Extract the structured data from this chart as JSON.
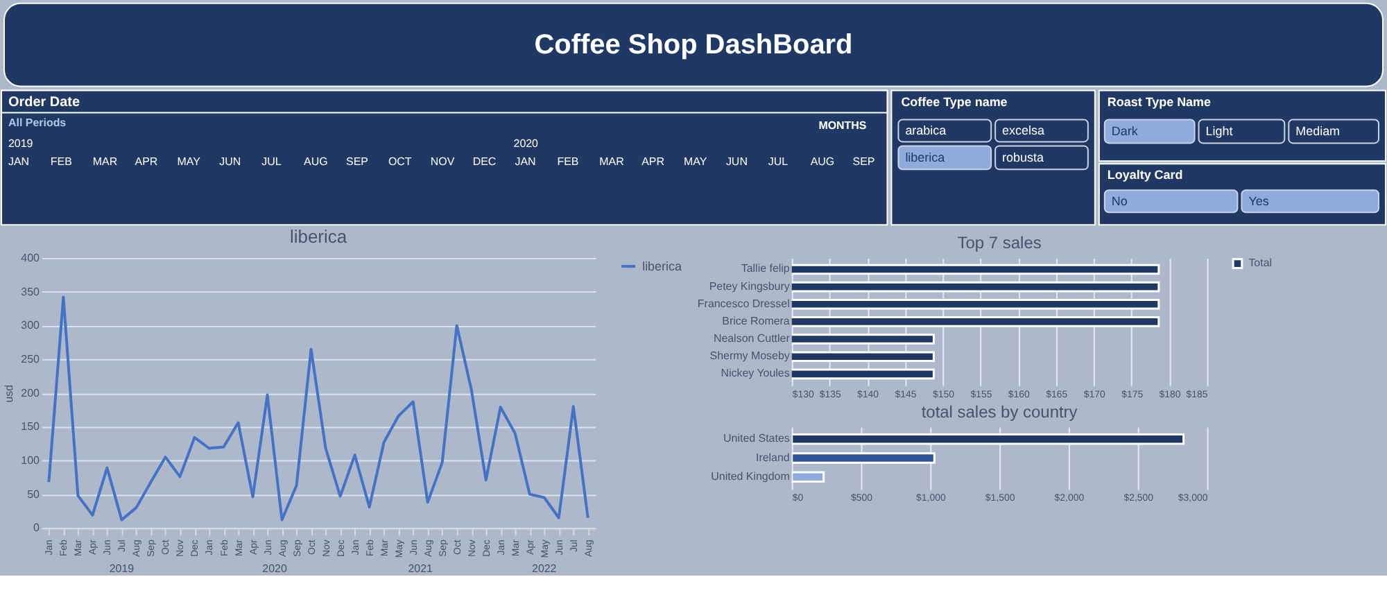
{
  "chart_data": [
    {
      "type": "other",
      "title": "Coffee Shop DashBoard",
      "annotations": [
        "Order Date",
        "All Periods",
        "MONTHS",
        "2019",
        "2020",
        "JAN",
        "FEB",
        "MAR",
        "APR",
        "MAY",
        "JUN",
        "JUL",
        "AUG",
        "SEP",
        "OCT",
        "NOV",
        "DEC",
        "JAN",
        "FEB",
        "MAR",
        "APR",
        "MAY",
        "JUN",
        "JUL",
        "AUG",
        "SEP",
        "Coffee Type name",
        "arabica",
        "excelsa",
        "liberica",
        "robusta",
        "Roast Type Name",
        "Dark",
        "Light",
        "Mediam",
        "Loyalty Card",
        "No",
        "Yes"
      ]
    },
    {
      "type": "line",
      "title": "liberica",
      "ylabel": "usd",
      "categories": [
        "Jan",
        "Feb",
        "Mar",
        "Apr",
        "Jun",
        "Jul",
        "Aug",
        "Sep",
        "Oct",
        "Nov",
        "Dec",
        "Jan",
        "Feb",
        "Mar",
        "Apr",
        "Jun",
        "Aug",
        "Sep",
        "Oct",
        "Nov",
        "Dec",
        "Jan",
        "Feb",
        "Mar",
        "May",
        "Jun",
        "Aug",
        "Sep",
        "Oct",
        "Nov",
        "Dec",
        "Jan",
        "Mar",
        "Apr",
        "May",
        "Jun",
        "Jul",
        "Aug"
      ],
      "series": [
        {
          "name": "liberica",
          "color": "#4472c4",
          "values": [
            68,
            342,
            48,
            19,
            89,
            12,
            30,
            68,
            105,
            76,
            134,
            118,
            120,
            156,
            46,
            197,
            12,
            63,
            265,
            118,
            47,
            108,
            31,
            127,
            166,
            187,
            38,
            97,
            300,
            205,
            71,
            179,
            140,
            50,
            45,
            15,
            180,
            15
          ]
        }
      ],
      "ylim": [
        0,
        400
      ],
      "yticks": [
        0,
        50,
        100,
        150,
        200,
        250,
        300,
        350,
        400
      ],
      "grid": "y",
      "legend": "right",
      "annotations": [
        "2019",
        "2020",
        "2021",
        "2022"
      ]
    },
    {
      "type": "bar",
      "orientation": "horizontal",
      "title": "Top 7 sales",
      "categories": [
        "Tallie felip",
        "Petey Kingsbury",
        "Francesco Dressel",
        "Brice Romera",
        "Nealson Cuttler",
        "Shermy Moseby",
        "Nickey Youles"
      ],
      "series": [
        {
          "name": "Total",
          "color": "#1f3864",
          "values": [
            178.6,
            178.6,
            178.6,
            178.6,
            148.8,
            148.8,
            148.8
          ]
        }
      ],
      "xlim": [
        130,
        185
      ],
      "xticks": [
        {
          "value": 130,
          "label": "$130"
        },
        {
          "value": 135,
          "label": "$135"
        },
        {
          "value": 140,
          "label": "$140"
        },
        {
          "value": 145,
          "label": "$145"
        },
        {
          "value": 150,
          "label": "$150"
        },
        {
          "value": 155,
          "label": "$155"
        },
        {
          "value": 160,
          "label": "$160"
        },
        {
          "value": 165,
          "label": "$165"
        },
        {
          "value": 170,
          "label": "$170"
        },
        {
          "value": 175,
          "label": "$175"
        },
        {
          "value": 180,
          "label": "$180"
        },
        {
          "value": 185,
          "label": "$185"
        }
      ],
      "grid": "x",
      "legend": "right"
    },
    {
      "type": "bar",
      "orientation": "horizontal",
      "title": "total sales by country",
      "categories": [
        "United States",
        "Ireland",
        "United Kingdom"
      ],
      "values": [
        2830,
        1030,
        230
      ],
      "colors": [
        "#1f3864",
        "#2f5597",
        "#8faadc"
      ],
      "xlim": [
        0,
        3000
      ],
      "xticks": [
        {
          "value": 0,
          "label": "$0"
        },
        {
          "value": 500,
          "label": "$500"
        },
        {
          "value": 1000,
          "label": "$1,000"
        },
        {
          "value": 1500,
          "label": "$1,500"
        },
        {
          "value": 2000,
          "label": "$2,000"
        },
        {
          "value": 2500,
          "label": "$2,500"
        },
        {
          "value": 3000,
          "label": "$3,000"
        }
      ],
      "grid": "x"
    }
  ]
}
